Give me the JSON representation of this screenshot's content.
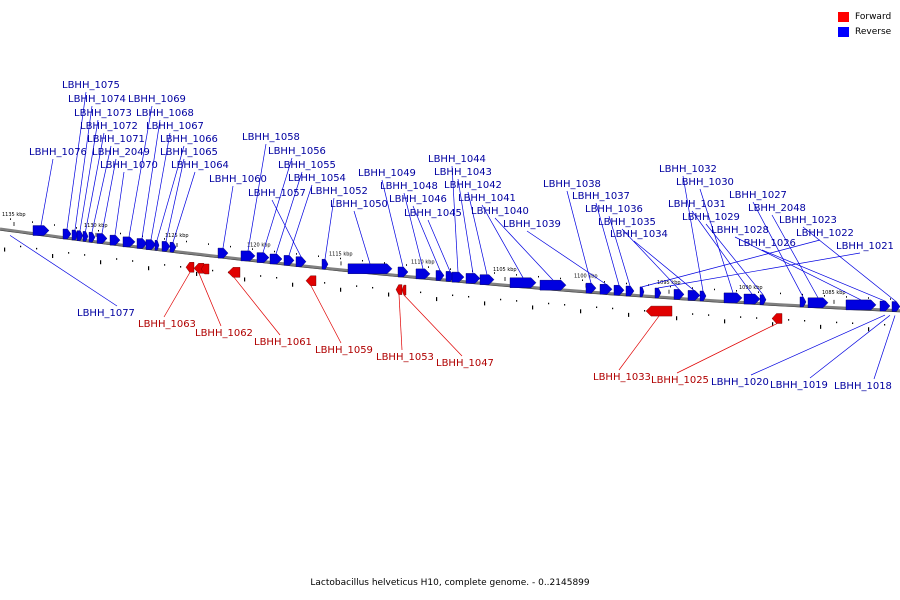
{
  "legend": [
    {
      "label": "Forward",
      "color": "#ff0000"
    },
    {
      "label": "Reverse",
      "color": "#0000ff"
    }
  ],
  "caption": "Lactobacillus helveticus H10, complete genome. - 0..2145899",
  "colors": {
    "forward": "#e00000",
    "reverse": "#0000e0",
    "backbone": "#808080",
    "forward_label": "#b00000",
    "reverse_label": "#0000a0"
  },
  "ticks": [
    "1135 kbp",
    "1130 kbp",
    "1125 kbp",
    "1120 kbp",
    "1115 kbp",
    "1110 kbp",
    "1105 kbp",
    "1100 kbp",
    "1095 kbp",
    "1090 kbp",
    "1085 kbp"
  ],
  "reverse_labels": [
    "LBHH_1075",
    "LBHH_1074",
    "LBHH_1073",
    "LBHH_1072",
    "LBHH_1071",
    "LBHH_1076",
    "LBHH_2049",
    "LBHH_1070",
    "LBHH_1069",
    "LBHH_1068",
    "LBHH_1067",
    "LBHH_1066",
    "LBHH_1065",
    "LBHH_1064",
    "LBHH_1058",
    "LBHH_1056",
    "LBHH_1055",
    "LBHH_1054",
    "LBHH_1060",
    "LBHH_1057",
    "LBHH_1052",
    "LBHH_1050",
    "LBHH_1049",
    "LBHH_1048",
    "LBHH_1046",
    "LBHH_1045",
    "LBHH_1044",
    "LBHH_1043",
    "LBHH_1042",
    "LBHH_1041",
    "LBHH_1040",
    "LBHH_1038",
    "LBHH_1039",
    "LBHH_1037",
    "LBHH_1036",
    "LBHH_1035",
    "LBHH_1034",
    "LBHH_1032",
    "LBHH_1030",
    "LBHH_1031",
    "LBHH_1029",
    "LBHH_1027",
    "LBHH_2048",
    "LBHH_1028",
    "LBHH_1026",
    "LBHH_1023",
    "LBHH_1022",
    "LBHH_1021",
    "LBHH_1077",
    "LBHH_1020",
    "LBHH_1019",
    "LBHH_1018"
  ],
  "forward_labels": [
    "LBHH_1063",
    "LBHH_1062",
    "LBHH_1061",
    "LBHH_1059",
    "LBHH_1053",
    "LBHH_1047",
    "LBHH_1033",
    "LBHH_1025"
  ]
}
